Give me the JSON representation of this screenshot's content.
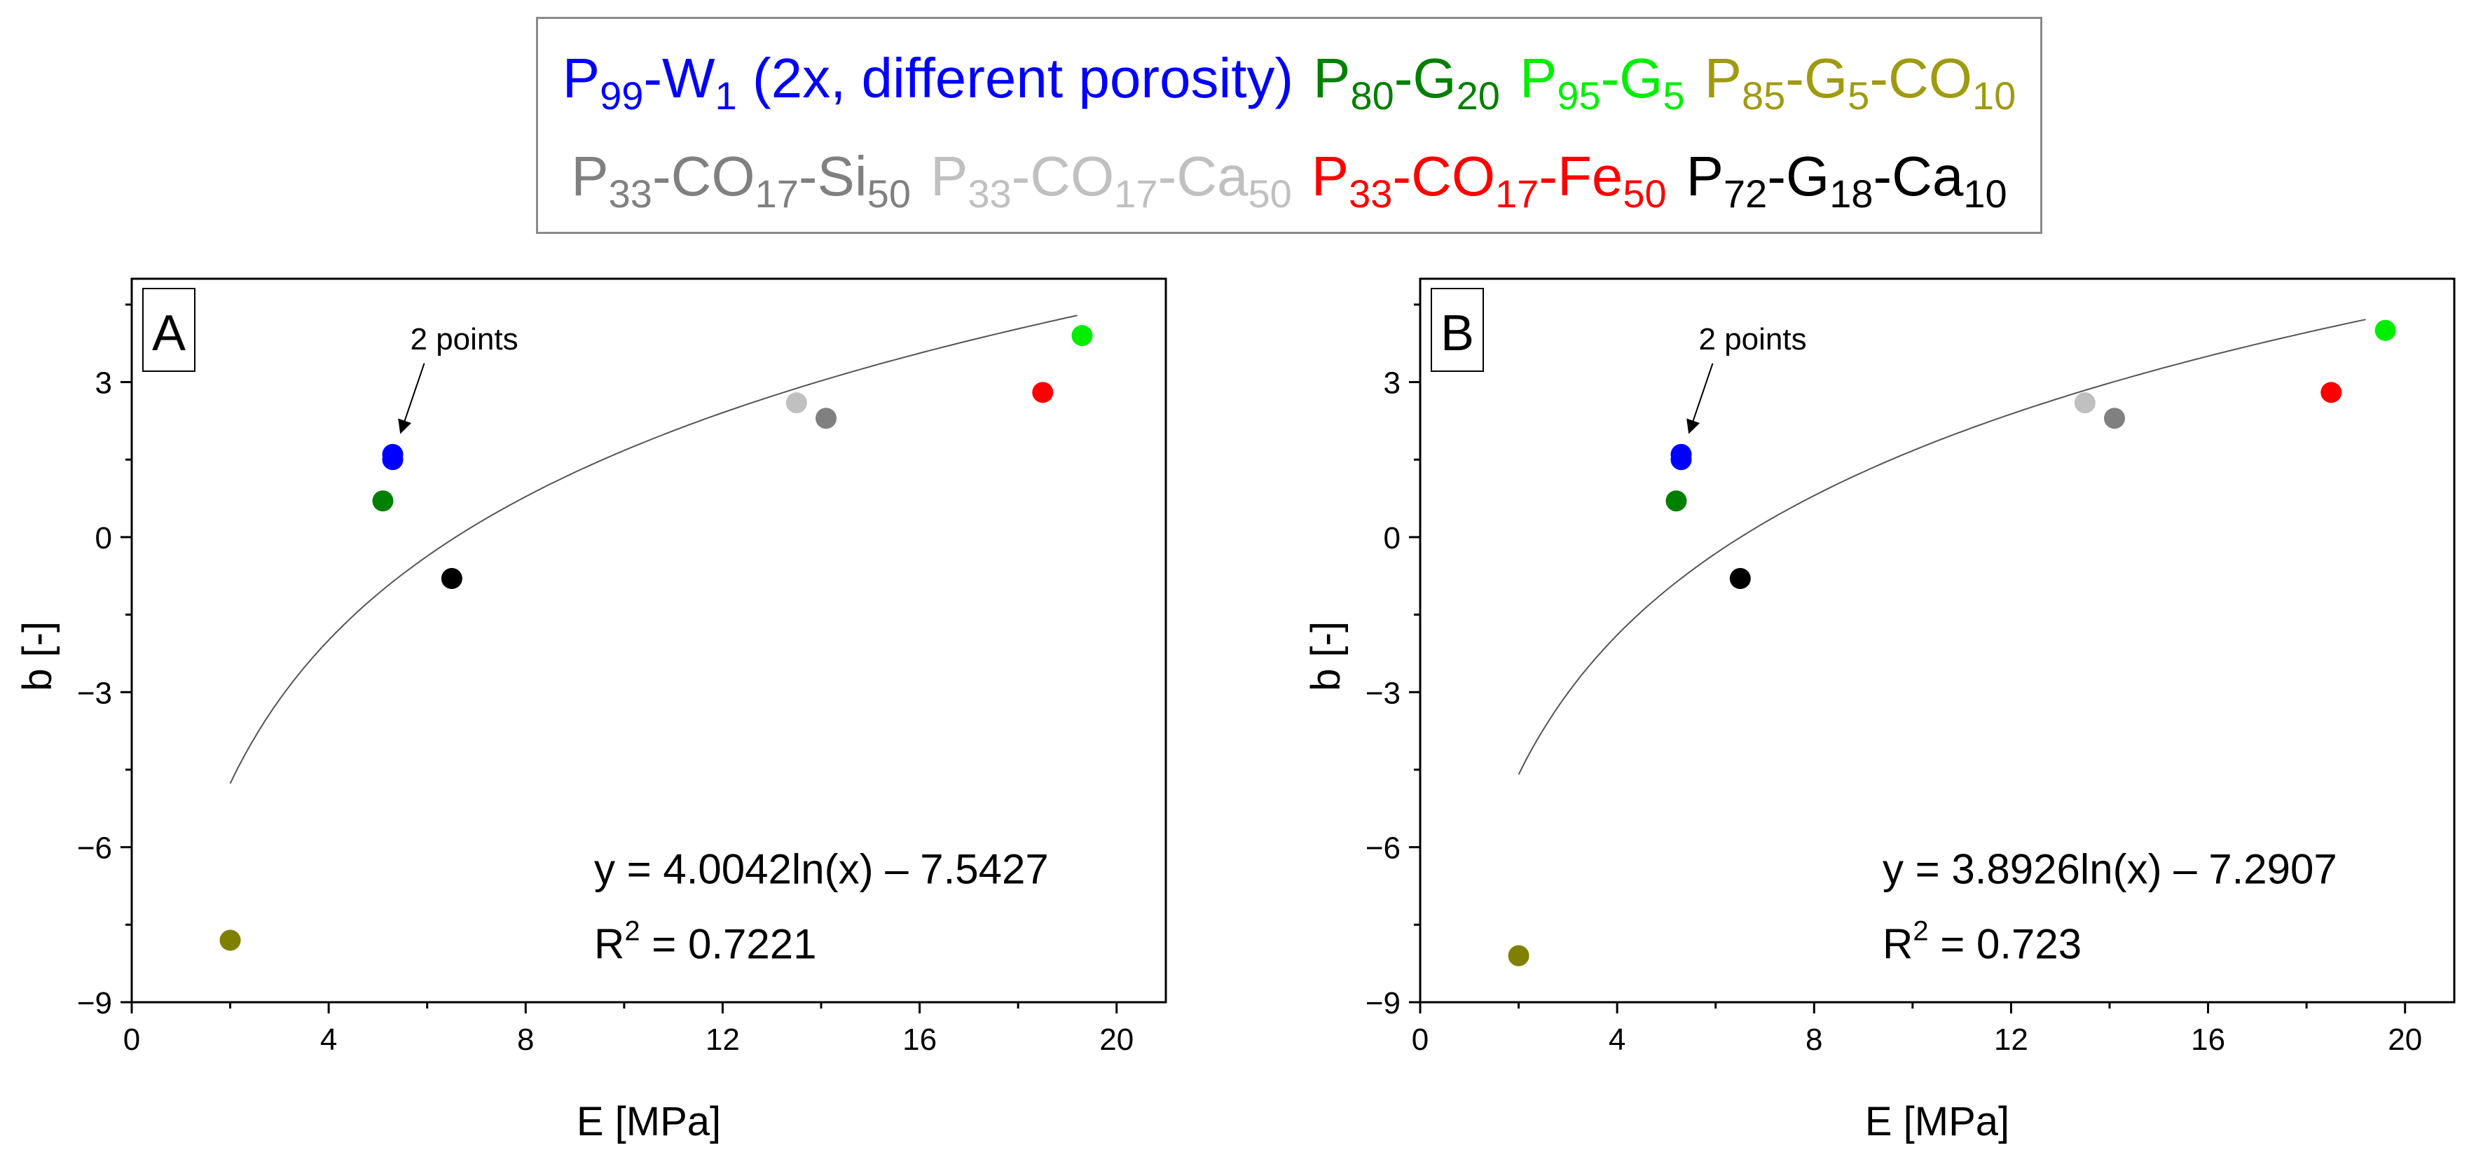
{
  "legend": {
    "row1": [
      {
        "main": "P",
        "parts": [
          [
            "sub",
            "99"
          ],
          [
            "txt",
            "-W"
          ],
          [
            "sub",
            "1"
          ],
          [
            "txt",
            " (2x, different porosity)"
          ]
        ],
        "color": "#0000ff"
      },
      {
        "main": "P",
        "parts": [
          [
            "sub",
            "80"
          ],
          [
            "txt",
            "-G"
          ],
          [
            "sub",
            "20"
          ]
        ],
        "color": "#008000"
      },
      {
        "main": "P",
        "parts": [
          [
            "sub",
            "95"
          ],
          [
            "txt",
            "-G"
          ],
          [
            "sub",
            "5"
          ]
        ],
        "color": "#00ee00"
      },
      {
        "main": "P",
        "parts": [
          [
            "sub",
            "85"
          ],
          [
            "txt",
            "-G"
          ],
          [
            "sub",
            "5"
          ],
          [
            "txt",
            "-CO"
          ],
          [
            "sub",
            "10"
          ]
        ],
        "color": "#a09a10"
      }
    ],
    "row2": [
      {
        "main": "P",
        "parts": [
          [
            "sub",
            "33"
          ],
          [
            "txt",
            "-CO"
          ],
          [
            "sub",
            "17"
          ],
          [
            "txt",
            "-Si"
          ],
          [
            "sub",
            "50"
          ]
        ],
        "color": "#808080"
      },
      {
        "main": "P",
        "parts": [
          [
            "sub",
            "33"
          ],
          [
            "txt",
            "-CO"
          ],
          [
            "sub",
            "17"
          ],
          [
            "txt",
            "-Ca"
          ],
          [
            "sub",
            "50"
          ]
        ],
        "color": "#c0c0c0"
      },
      {
        "main": "P",
        "parts": [
          [
            "sub",
            "33"
          ],
          [
            "txt",
            "-CO"
          ],
          [
            "sub",
            "17"
          ],
          [
            "txt",
            "-Fe"
          ],
          [
            "sub",
            "50"
          ]
        ],
        "color": "#ff0000"
      },
      {
        "main": "P",
        "parts": [
          [
            "sub",
            "72"
          ],
          [
            "txt",
            "-G"
          ],
          [
            "sub",
            "18"
          ],
          [
            "txt",
            "-Ca"
          ],
          [
            "sub",
            "10"
          ]
        ],
        "color": "#000000"
      }
    ]
  },
  "chart_data": [
    {
      "type": "scatter",
      "panel": "A",
      "xlabel": "E [MPa]",
      "ylabel": "b [-]",
      "xlim": [
        0,
        21
      ],
      "ylim": [
        -9,
        5
      ],
      "xticks": [
        0,
        4,
        8,
        12,
        16,
        20
      ],
      "yticks": [
        3,
        0,
        -3,
        -6,
        -9
      ],
      "x_tick_labels": [
        "0",
        "4",
        "8",
        "12",
        "16",
        "20"
      ],
      "y_tick_labels": [
        "3",
        "0",
        "−3",
        "−6",
        "−9"
      ],
      "points": [
        {
          "series": "P99-W1 (a)",
          "x": 5.3,
          "y": 1.6,
          "color": "#0000ff"
        },
        {
          "series": "P99-W1 (b)",
          "x": 5.3,
          "y": 1.5,
          "color": "#0000ff"
        },
        {
          "series": "P80-G20",
          "x": 5.1,
          "y": 0.7,
          "color": "#008000"
        },
        {
          "series": "P95-G5",
          "x": 19.3,
          "y": 3.9,
          "color": "#00ee00"
        },
        {
          "series": "P85-G5-CO10",
          "x": 2.0,
          "y": -7.8,
          "color": "#808000"
        },
        {
          "series": "P33-CO17-Si50",
          "x": 14.1,
          "y": 2.3,
          "color": "#808080"
        },
        {
          "series": "P33-CO17-Ca50",
          "x": 13.5,
          "y": 2.6,
          "color": "#c0c0c0"
        },
        {
          "series": "P33-CO17-Fe50",
          "x": 18.5,
          "y": 2.8,
          "color": "#ff0000"
        },
        {
          "series": "P72-G18-Ca10",
          "x": 6.5,
          "y": -0.8,
          "color": "#000000"
        }
      ],
      "fit": {
        "a": 4.0042,
        "b": -7.5427,
        "x_range": [
          2,
          19.2
        ]
      },
      "equation": "y = 4.0042ln(x) – 7.5427",
      "r2_prefix": "R",
      "r2_exp": "2",
      "r2_value": " = 0.7221",
      "annotation": "2 points"
    },
    {
      "type": "scatter",
      "panel": "B",
      "xlabel": "E [MPa]",
      "ylabel": "b [-]",
      "xlim": [
        0,
        21
      ],
      "ylim": [
        -9,
        5
      ],
      "xticks": [
        0,
        4,
        8,
        12,
        16,
        20
      ],
      "yticks": [
        3,
        0,
        -3,
        -6,
        -9
      ],
      "x_tick_labels": [
        "0",
        "4",
        "8",
        "12",
        "16",
        "20"
      ],
      "y_tick_labels": [
        "3",
        "0",
        "−3",
        "−6",
        "−9"
      ],
      "points": [
        {
          "series": "P99-W1 (a)",
          "x": 5.3,
          "y": 1.6,
          "color": "#0000ff"
        },
        {
          "series": "P99-W1 (b)",
          "x": 5.3,
          "y": 1.5,
          "color": "#0000ff"
        },
        {
          "series": "P80-G20",
          "x": 5.2,
          "y": 0.7,
          "color": "#008000"
        },
        {
          "series": "P95-G5",
          "x": 19.6,
          "y": 4.0,
          "color": "#00ee00"
        },
        {
          "series": "P85-G5-CO10",
          "x": 2.0,
          "y": -8.1,
          "color": "#808000"
        },
        {
          "series": "P33-CO17-Si50",
          "x": 14.1,
          "y": 2.3,
          "color": "#808080"
        },
        {
          "series": "P33-CO17-Ca50",
          "x": 13.5,
          "y": 2.6,
          "color": "#c0c0c0"
        },
        {
          "series": "P33-CO17-Fe50",
          "x": 18.5,
          "y": 2.8,
          "color": "#ff0000"
        },
        {
          "series": "P72-G18-Ca10",
          "x": 6.5,
          "y": -0.8,
          "color": "#000000"
        }
      ],
      "fit": {
        "a": 3.8926,
        "b": -7.2907,
        "x_range": [
          2,
          19.2
        ]
      },
      "equation": "y = 3.8926ln(x) – 7.2907",
      "r2_prefix": "R",
      "r2_exp": "2",
      "r2_value": " = 0.723",
      "annotation": "2 points"
    }
  ]
}
